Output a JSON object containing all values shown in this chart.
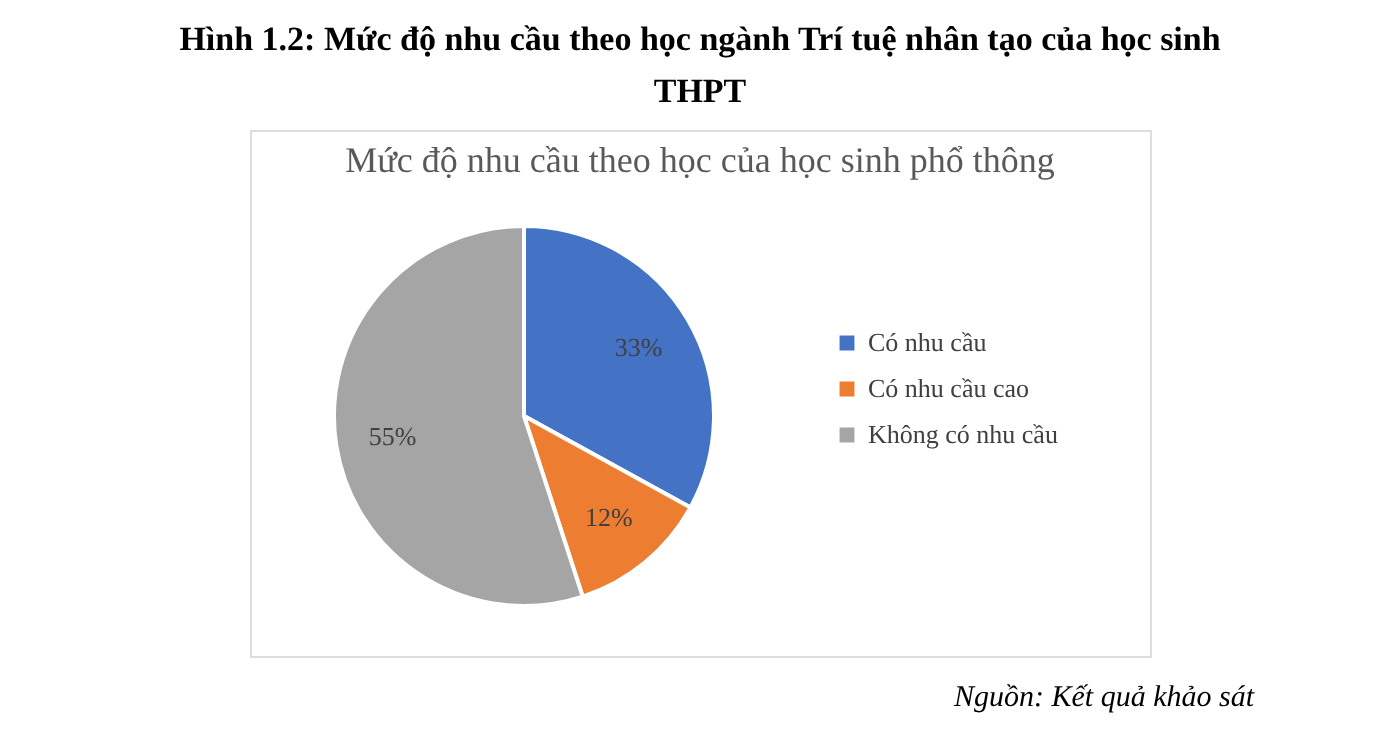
{
  "chart_data": {
    "type": "pie",
    "title": "Hình 1.2: Mức độ nhu cầu theo học ngành Trí tuệ nhân tạo của học sinh THPT",
    "subtitle": "Mức độ nhu cầu theo học của học sinh phổ thông",
    "categories": [
      "Có nhu cầu",
      "Có nhu cầu cao",
      "Không có nhu cầu"
    ],
    "values": [
      33,
      12,
      55
    ],
    "value_labels": [
      "33%",
      "12%",
      "55%"
    ],
    "colors": [
      "#4472c4",
      "#ed7d31",
      "#a5a5a5"
    ],
    "legend": "right",
    "annotations": [
      "Nguồn: Kết quả khảo sát"
    ]
  }
}
